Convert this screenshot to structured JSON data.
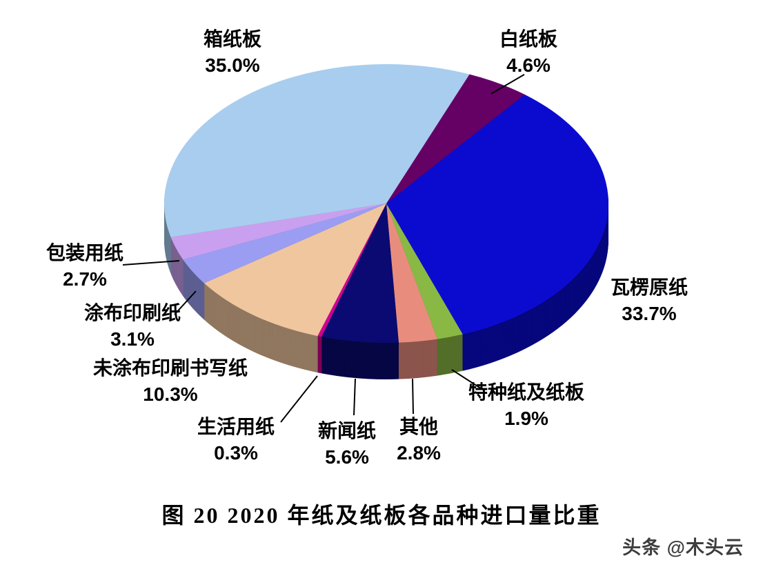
{
  "page": {
    "watermark": "头条 @木头云",
    "background": "#ffffff"
  },
  "chart_data": {
    "type": "pie",
    "style": "3d",
    "title": "图 20  2020 年纸及纸板各品种进口量比重",
    "unit": "%",
    "legend_position": "labels-around-pie",
    "start_angle_deg_clockwise_from_top": 256,
    "slices": [
      {
        "label": "箱纸板",
        "value": 35.0,
        "pct_label": "35.0%",
        "color": "#a9cdee"
      },
      {
        "label": "白纸板",
        "value": 4.6,
        "pct_label": "4.6%",
        "color": "#650065"
      },
      {
        "label": "瓦楞原纸",
        "value": 33.7,
        "pct_label": "33.7%",
        "color": "#0b0bd0"
      },
      {
        "label": "特种纸及纸板",
        "value": 1.9,
        "pct_label": "1.9%",
        "color": "#8ab844"
      },
      {
        "label": "其他",
        "value": 2.8,
        "pct_label": "2.8%",
        "color": "#e88d7e"
      },
      {
        "label": "新闻纸",
        "value": 5.6,
        "pct_label": "5.6%",
        "color": "#0a0a72"
      },
      {
        "label": "生活用纸",
        "value": 0.3,
        "pct_label": "0.3%",
        "color": "#d10090"
      },
      {
        "label": "未涂布印刷书写纸",
        "value": 10.3,
        "pct_label": "10.3%",
        "color": "#f0c69e"
      },
      {
        "label": "涂布印刷纸",
        "value": 3.1,
        "pct_label": "3.1%",
        "color": "#9b9df2"
      },
      {
        "label": "包装用纸",
        "value": 2.7,
        "pct_label": "2.7%",
        "color": "#c9a0f0"
      }
    ]
  }
}
